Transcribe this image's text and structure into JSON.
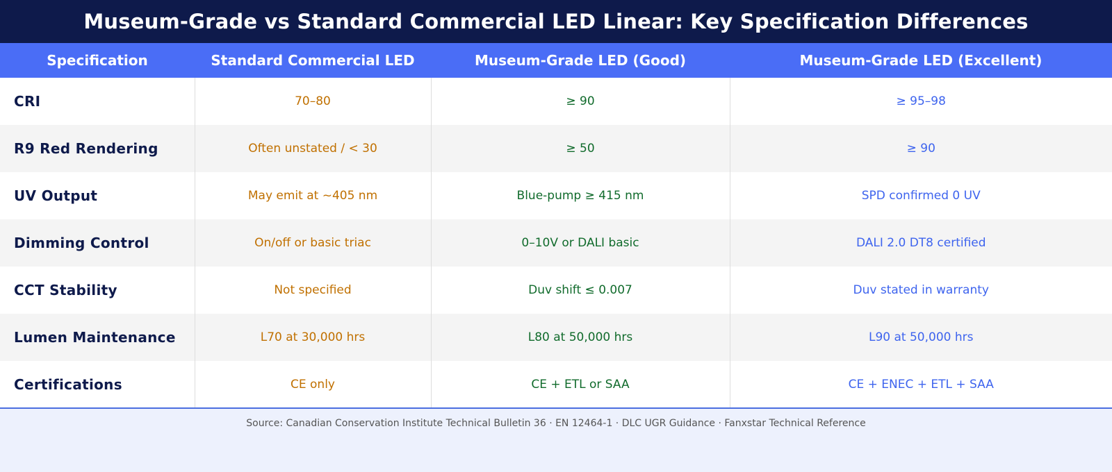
{
  "title": "Museum-Grade vs Standard Commercial LED Linear: Key Specification Differences",
  "columns": [
    "Specification",
    "Standard Commercial LED",
    "Museum-Grade LED (Good)",
    "Museum-Grade LED (Excellent)"
  ],
  "rows": [
    {
      "spec": "CRI",
      "standard": "70–80",
      "good": "≥ 90",
      "excellent": "≥ 95–98"
    },
    {
      "spec": "R9 Red Rendering",
      "standard": "Often unstated / < 30",
      "good": "≥ 50",
      "excellent": "≥ 90"
    },
    {
      "spec": "UV Output",
      "standard": "May emit at ~405 nm",
      "good": "Blue-pump ≥ 415 nm",
      "excellent": "SPD confirmed 0 UV"
    },
    {
      "spec": "Dimming Control",
      "standard": "On/off or basic triac",
      "good": "0–10V or DALI basic",
      "excellent": "DALI 2.0 DT8 certified"
    },
    {
      "spec": "CCT Stability",
      "standard": "Not specified",
      "good": "Duv shift ≤ 0.007",
      "excellent": "Duv stated in warranty"
    },
    {
      "spec": "Lumen Maintenance",
      "standard": "L70 at 30,000 hrs",
      "good": "L80 at 50,000 hrs",
      "excellent": "L90 at 50,000 hrs"
    },
    {
      "spec": "Certifications",
      "standard": "CE only",
      "good": "CE + ETL or SAA",
      "excellent": "CE + ENEC + ETL + SAA"
    }
  ],
  "source": "Source: Canadian Conservation Institute Technical Bulletin 36  ·  EN 12464-1  ·  DLC UGR Guidance  ·  Fanxstar Technical Reference",
  "colors": {
    "title_bg": "#0e1a4b",
    "header_bg": "#4a6df6",
    "standard_text": "#c07000",
    "good_text": "#116b2c",
    "excellent_text": "#3e64ee",
    "footer_bg": "#edf1fd"
  }
}
